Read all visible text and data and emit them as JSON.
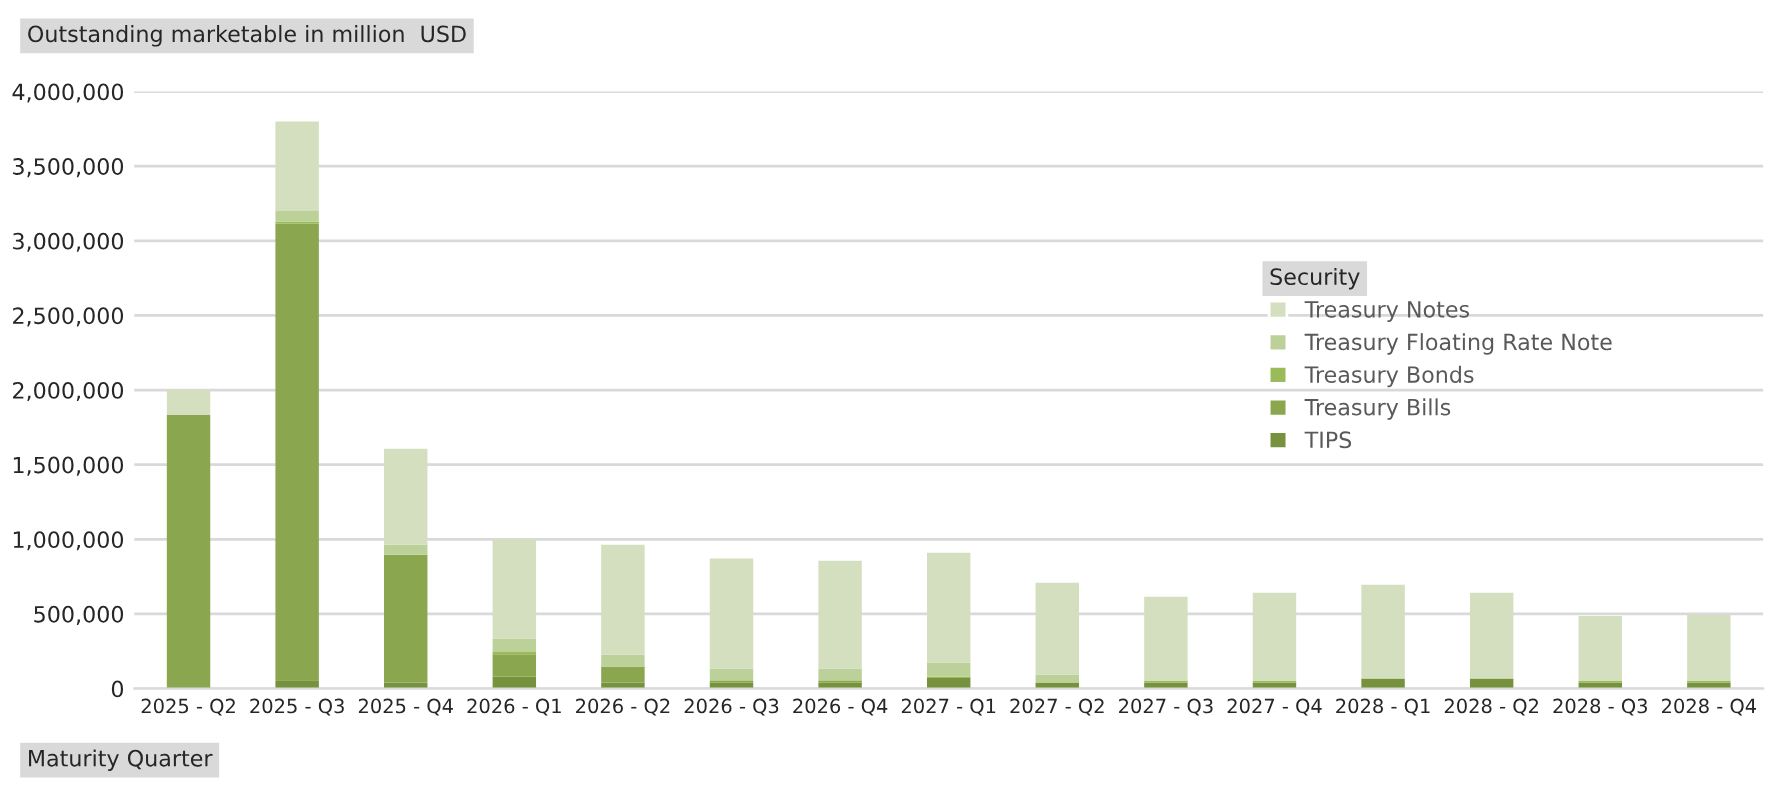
{
  "chart_data": {
    "type": "bar",
    "stacked": true,
    "title": "Outstanding marketable in million  USD",
    "xlabel": "Maturity Quarter",
    "legend_title": "Security",
    "categories": [
      "2025 - Q2",
      "2025 - Q3",
      "2025 - Q4",
      "2026 - Q1",
      "2026 - Q2",
      "2026 - Q3",
      "2026 - Q4",
      "2027 - Q1",
      "2027 - Q2",
      "2027 - Q3",
      "2027 - Q4",
      "2028 - Q1",
      "2028 - Q2",
      "2028 - Q3",
      "2028 - Q4"
    ],
    "series": [
      {
        "name": "TIPS",
        "color": "#76923c",
        "values": [
          0,
          55000,
          40000,
          80000,
          40000,
          40000,
          40000,
          70000,
          40000,
          40000,
          40000,
          67000,
          67000,
          40000,
          40000
        ]
      },
      {
        "name": "Treasury Bills",
        "color": "#8aa64e",
        "values": [
          1833000,
          3060000,
          856000,
          150000,
          107000,
          10000,
          10000,
          0,
          0,
          0,
          0,
          0,
          0,
          0,
          0
        ]
      },
      {
        "name": "Treasury Bonds",
        "color": "#9bbb59",
        "values": [
          0,
          15000,
          0,
          15000,
          0,
          5000,
          5000,
          10000,
          0,
          10000,
          10000,
          0,
          0,
          10000,
          10000
        ]
      },
      {
        "name": "Treasury Floating Rate Note",
        "color": "#bcd19a",
        "values": [
          0,
          70000,
          67000,
          90000,
          80000,
          80000,
          80000,
          95000,
          54000,
          0,
          0,
          0,
          0,
          0,
          0
        ]
      },
      {
        "name": "Treasury Notes",
        "color": "#d3dfbf",
        "values": [
          167000,
          600000,
          643000,
          665000,
          736000,
          736000,
          721000,
          735000,
          615000,
          565000,
          592000,
          629000,
          575000,
          436000,
          445000
        ]
      }
    ],
    "ylim": [
      0,
      4000000
    ],
    "yticks": [
      {
        "value": 0,
        "label": "0"
      },
      {
        "value": 500000,
        "label": "500,000"
      },
      {
        "value": 1000000,
        "label": "1,000,000"
      },
      {
        "value": 1500000,
        "label": "1,500,000"
      },
      {
        "value": 2000000,
        "label": "2,000,000"
      },
      {
        "value": 2500000,
        "label": "2,500,000"
      },
      {
        "value": 3000000,
        "label": "3,000,000"
      },
      {
        "value": 3500000,
        "label": "3,500,000"
      },
      {
        "value": 4000000,
        "label": "4,000,000"
      }
    ],
    "grid": "y",
    "legend": "right"
  }
}
